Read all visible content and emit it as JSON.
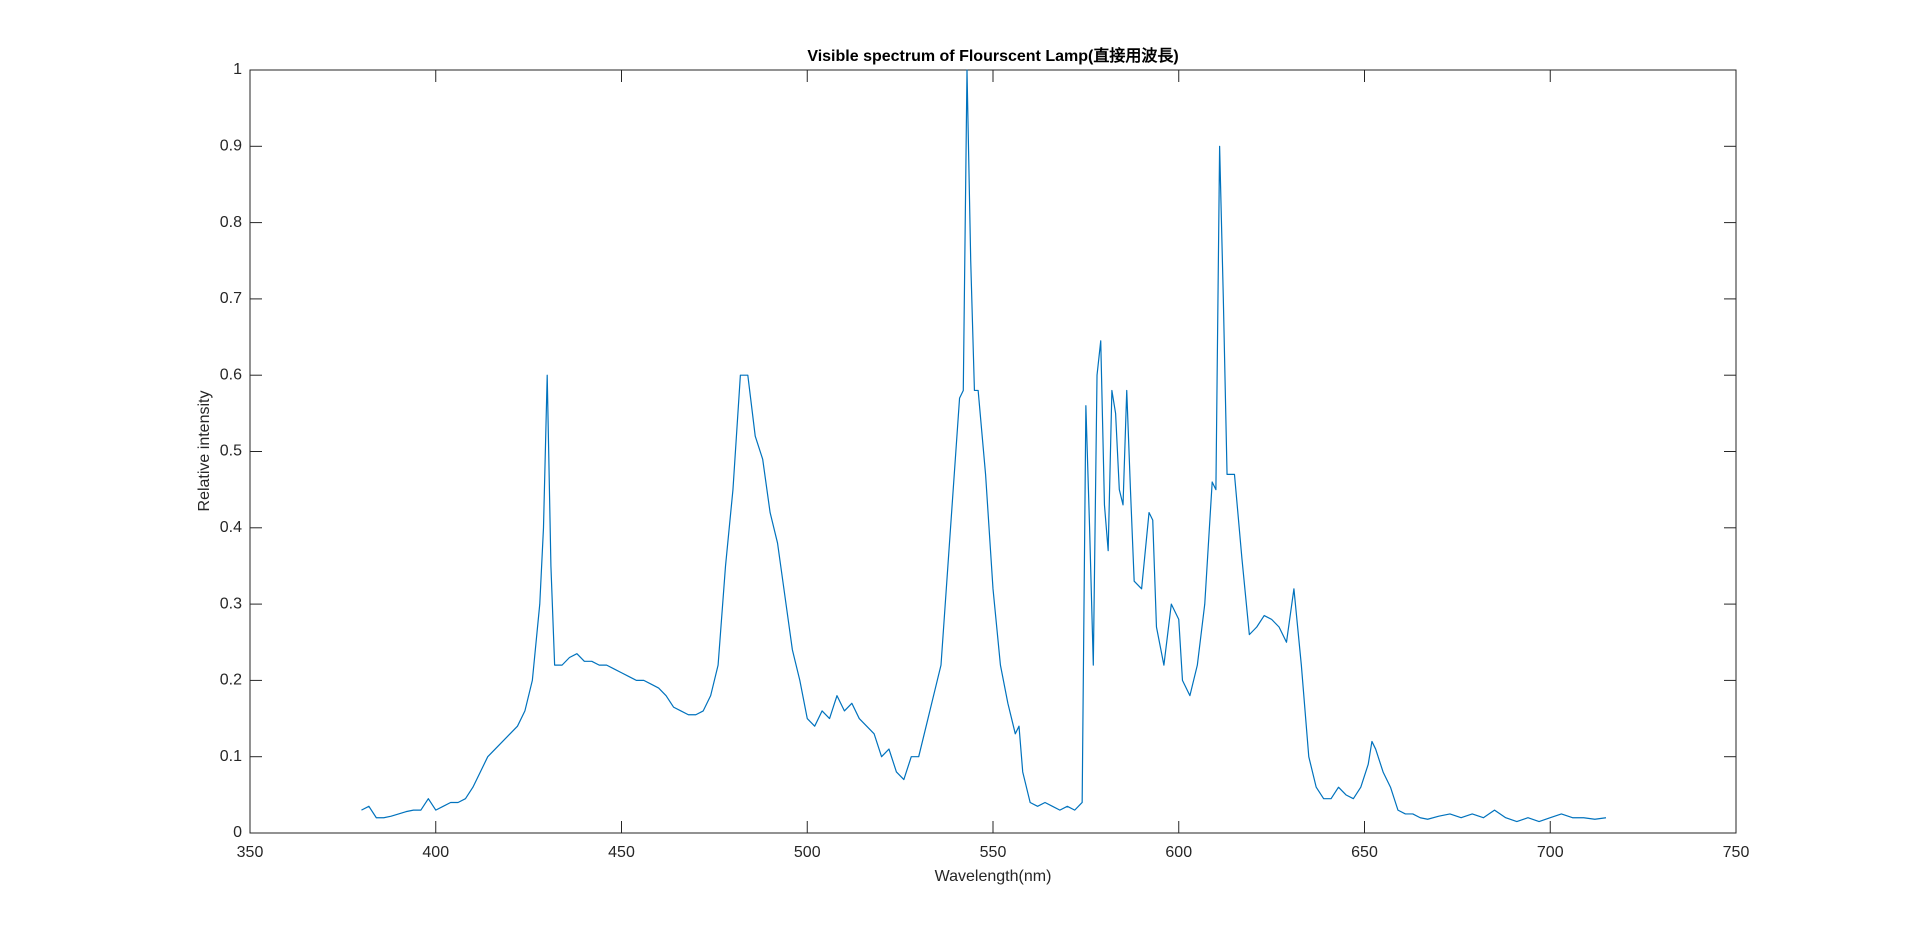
{
  "chart_data": {
    "type": "line",
    "title": "Visible spectrum of Flourscent Lamp(直接用波長)",
    "x_label": "Wavelength(nm)",
    "y_label": "Relative intensity",
    "xlim": [
      350,
      750
    ],
    "xticks": [
      350,
      400,
      450,
      500,
      550,
      600,
      650,
      700,
      750
    ],
    "ylim": [
      0,
      1
    ],
    "yticks": [
      0,
      0.1,
      0.2,
      0.3,
      0.4,
      0.5,
      0.6,
      0.7,
      0.8,
      0.9,
      1
    ],
    "grid": false,
    "series": [
      {
        "color": "#0072bd",
        "x": [
          380,
          382,
          384,
          386,
          388,
          390,
          392,
          394,
          396,
          398,
          400,
          402,
          404,
          406,
          408,
          410,
          412,
          414,
          416,
          418,
          420,
          422,
          424,
          426,
          428,
          429,
          430,
          431,
          432,
          434,
          436,
          438,
          440,
          442,
          444,
          446,
          448,
          450,
          452,
          454,
          456,
          458,
          460,
          462,
          464,
          466,
          468,
          470,
          472,
          474,
          476,
          478,
          480,
          482,
          484,
          486,
          488,
          490,
          492,
          494,
          496,
          498,
          500,
          502,
          504,
          506,
          508,
          510,
          512,
          514,
          516,
          518,
          520,
          522,
          524,
          526,
          528,
          530,
          532,
          534,
          536,
          538,
          540,
          541,
          542,
          543,
          544,
          545,
          546,
          548,
          550,
          552,
          554,
          556,
          557,
          558,
          560,
          562,
          564,
          566,
          568,
          570,
          572,
          574,
          575,
          576,
          577,
          578,
          579,
          580,
          581,
          582,
          583,
          584,
          585,
          586,
          587,
          588,
          590,
          592,
          593,
          594,
          596,
          598,
          600,
          601,
          603,
          605,
          607,
          609,
          610,
          611,
          612,
          613,
          615,
          617,
          619,
          621,
          623,
          625,
          627,
          629,
          631,
          633,
          635,
          637,
          639,
          641,
          643,
          645,
          647,
          649,
          651,
          652,
          653,
          655,
          657,
          659,
          661,
          663,
          665,
          667,
          670,
          673,
          676,
          679,
          682,
          685,
          688,
          691,
          694,
          697,
          700,
          703,
          706,
          709,
          712,
          715
        ],
        "values": [
          0.03,
          0.035,
          0.02,
          0.02,
          0.022,
          0.025,
          0.028,
          0.03,
          0.03,
          0.045,
          0.03,
          0.035,
          0.04,
          0.04,
          0.045,
          0.06,
          0.08,
          0.1,
          0.11,
          0.12,
          0.13,
          0.14,
          0.16,
          0.2,
          0.3,
          0.4,
          0.6,
          0.35,
          0.22,
          0.22,
          0.23,
          0.235,
          0.225,
          0.225,
          0.22,
          0.22,
          0.215,
          0.21,
          0.205,
          0.2,
          0.2,
          0.195,
          0.19,
          0.18,
          0.165,
          0.16,
          0.155,
          0.155,
          0.16,
          0.18,
          0.22,
          0.35,
          0.45,
          0.6,
          0.6,
          0.52,
          0.49,
          0.42,
          0.38,
          0.31,
          0.24,
          0.2,
          0.15,
          0.14,
          0.16,
          0.15,
          0.18,
          0.16,
          0.17,
          0.15,
          0.14,
          0.13,
          0.1,
          0.11,
          0.08,
          0.07,
          0.1,
          0.1,
          0.14,
          0.18,
          0.22,
          0.36,
          0.5,
          0.57,
          0.58,
          1.0,
          0.75,
          0.58,
          0.58,
          0.47,
          0.32,
          0.22,
          0.17,
          0.13,
          0.14,
          0.08,
          0.04,
          0.035,
          0.04,
          0.035,
          0.03,
          0.035,
          0.03,
          0.04,
          0.56,
          0.4,
          0.22,
          0.6,
          0.645,
          0.43,
          0.37,
          0.58,
          0.55,
          0.45,
          0.43,
          0.58,
          0.45,
          0.33,
          0.32,
          0.42,
          0.41,
          0.27,
          0.22,
          0.3,
          0.28,
          0.2,
          0.18,
          0.22,
          0.3,
          0.46,
          0.45,
          0.9,
          0.7,
          0.47,
          0.47,
          0.36,
          0.26,
          0.27,
          0.285,
          0.28,
          0.27,
          0.25,
          0.32,
          0.22,
          0.1,
          0.06,
          0.045,
          0.045,
          0.06,
          0.05,
          0.045,
          0.06,
          0.09,
          0.12,
          0.11,
          0.08,
          0.06,
          0.03,
          0.025,
          0.025,
          0.02,
          0.018,
          0.022,
          0.025,
          0.02,
          0.025,
          0.02,
          0.03,
          0.02,
          0.015,
          0.02,
          0.015,
          0.02,
          0.025,
          0.02,
          0.02,
          0.018,
          0.02
        ]
      }
    ]
  }
}
